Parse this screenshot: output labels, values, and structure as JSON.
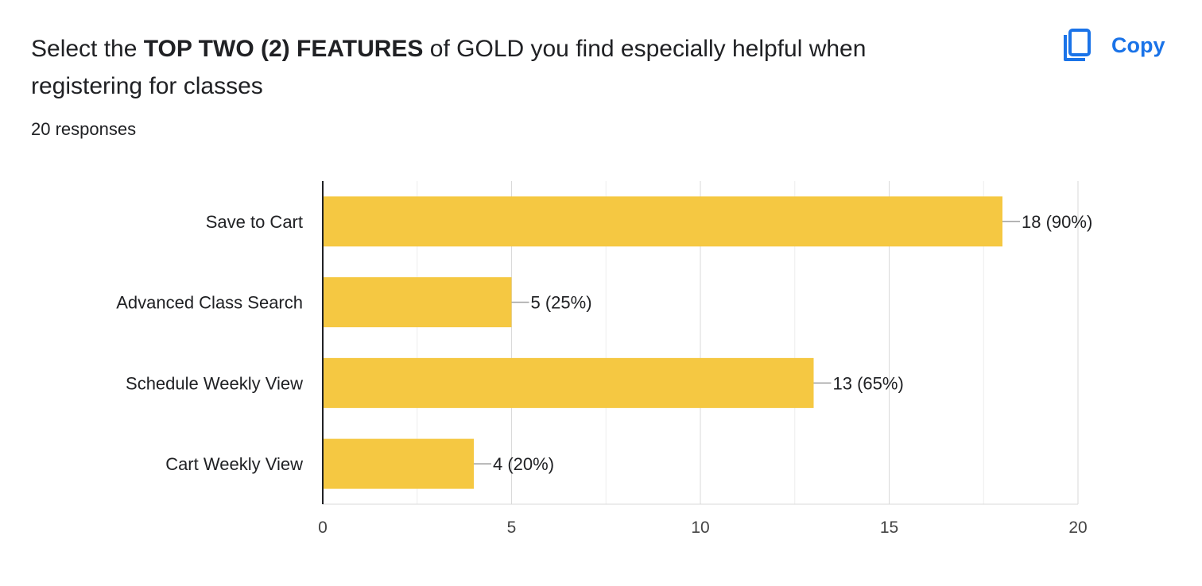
{
  "header": {
    "title_prefix": "Select the ",
    "title_bold": "TOP TWO (2) FEATURES",
    "title_suffix": " of GOLD you find especially helpful when registering for classes",
    "responses": "20 responses",
    "copy_label": "Copy"
  },
  "icons": {
    "copy": "copy-icon"
  },
  "colors": {
    "bar": "#f5c842",
    "accent": "#1a73e8",
    "grid": "#e6e6e6",
    "axis": "#202124"
  },
  "chart_data": {
    "type": "bar",
    "orientation": "horizontal",
    "categories": [
      "Save to Cart",
      "Advanced Class Search",
      "Schedule Weekly View",
      "Cart Weekly View"
    ],
    "values": [
      18,
      5,
      13,
      4
    ],
    "data_labels": [
      "18 (90%)",
      "5 (25%)",
      "13 (65%)",
      "4 (20%)"
    ],
    "xlim": [
      0,
      20
    ],
    "xticks": [
      0,
      5,
      10,
      15,
      20
    ],
    "grid": true
  }
}
